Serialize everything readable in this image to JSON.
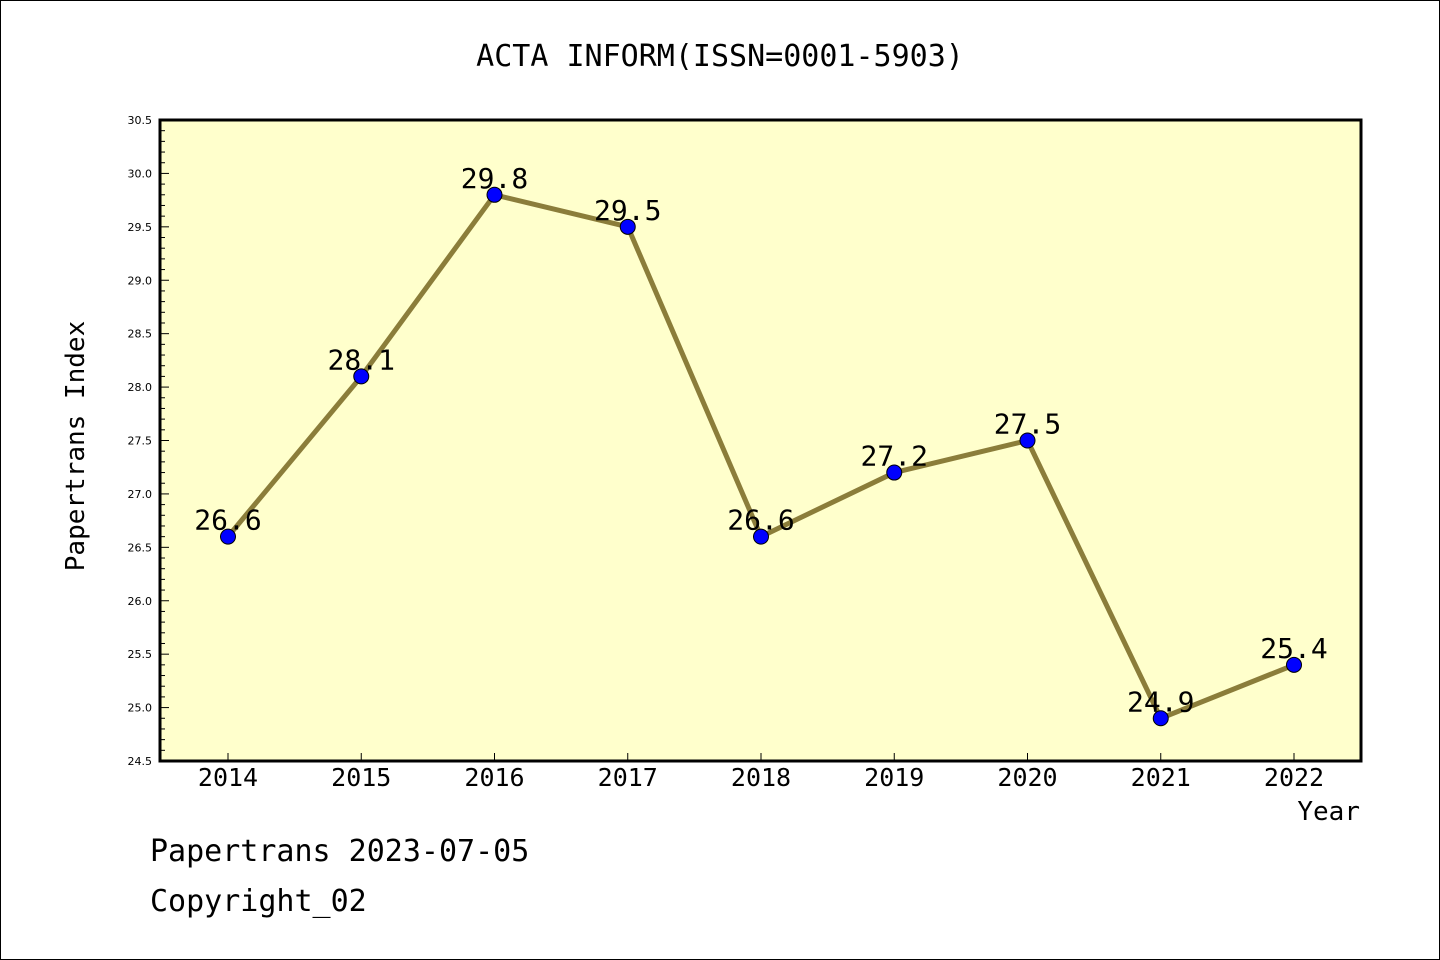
{
  "colors": {
    "plot_bg": "#ffffcc",
    "line": "#8b7d3a",
    "marker": "#0000ff",
    "axis": "#000000"
  },
  "chart_data": {
    "type": "line",
    "title": "ACTA INFORM(ISSN=0001-5903)",
    "xlabel": "Year",
    "ylabel": "Papertrans Index",
    "categories": [
      "2014",
      "2015",
      "2016",
      "2017",
      "2018",
      "2019",
      "2020",
      "2021",
      "2022"
    ],
    "values": [
      26.6,
      28.1,
      29.8,
      29.5,
      26.6,
      27.2,
      27.5,
      24.9,
      25.4
    ],
    "data_labels": [
      "26.6",
      "28.1",
      "29.8",
      "29.5",
      "26.6",
      "27.2",
      "27.5",
      "24.9",
      "25.4"
    ],
    "ylim": [
      24.5,
      30.5
    ],
    "yticks": [
      "24.5",
      "25.0",
      "25.5",
      "26.0",
      "26.5",
      "27.0",
      "27.5",
      "28.0",
      "28.5",
      "29.0",
      "29.5",
      "30.0",
      "30.5"
    ],
    "grid": false,
    "legend": "none"
  },
  "footer": {
    "line1": "Papertrans 2023-07-05",
    "line2": "Copyright_02"
  }
}
